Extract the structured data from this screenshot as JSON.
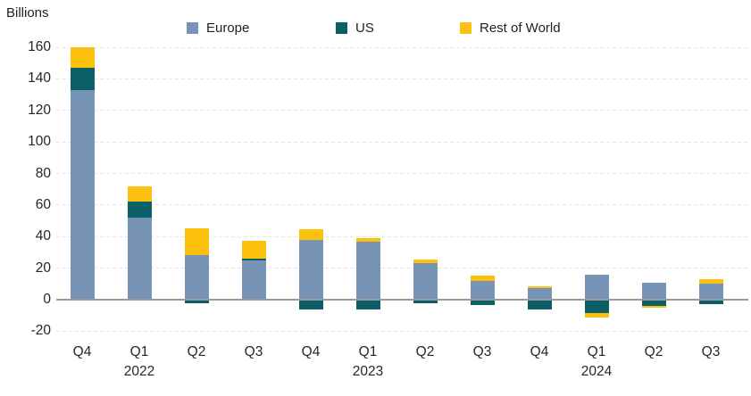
{
  "chart_data": {
    "type": "bar",
    "stacked": true,
    "title": "",
    "ylabel": "Billions",
    "xlabel": "",
    "categories": [
      "Q4",
      "Q1",
      "Q2",
      "Q3",
      "Q4",
      "Q1",
      "Q2",
      "Q3",
      "Q4",
      "Q1",
      "Q2",
      "Q3"
    ],
    "year_labels": [
      {
        "index": 1,
        "year": "2022"
      },
      {
        "index": 5,
        "year": "2023"
      },
      {
        "index": 9,
        "year": "2024"
      }
    ],
    "series": [
      {
        "name": "Europe",
        "color": "#7793B5",
        "values": [
          133,
          52,
          28,
          25,
          38,
          36.5,
          23,
          12,
          7.5,
          16,
          11,
          10
        ]
      },
      {
        "name": "US",
        "color": "#0B5F66",
        "values": [
          14,
          10,
          -2,
          1,
          -6,
          -6,
          -2,
          -3.5,
          -6.5,
          -8.5,
          -4,
          -3
        ]
      },
      {
        "name": "Rest of World",
        "color": "#FCC10E",
        "values": [
          13,
          10,
          17,
          11.5,
          6.5,
          2.5,
          2.5,
          3,
          1,
          -3,
          -1,
          3
        ]
      }
    ],
    "ylim": [
      -20,
      160
    ],
    "yticks": [
      -20,
      0,
      20,
      40,
      60,
      80,
      100,
      120,
      140,
      160
    ],
    "grid": "horizontal-dashed",
    "gridline_color": "#e4e4e4",
    "zero_line_color": "#9b9b9b",
    "legend_position": "top",
    "legend_x_positions": [
      209,
      376,
      515
    ]
  }
}
